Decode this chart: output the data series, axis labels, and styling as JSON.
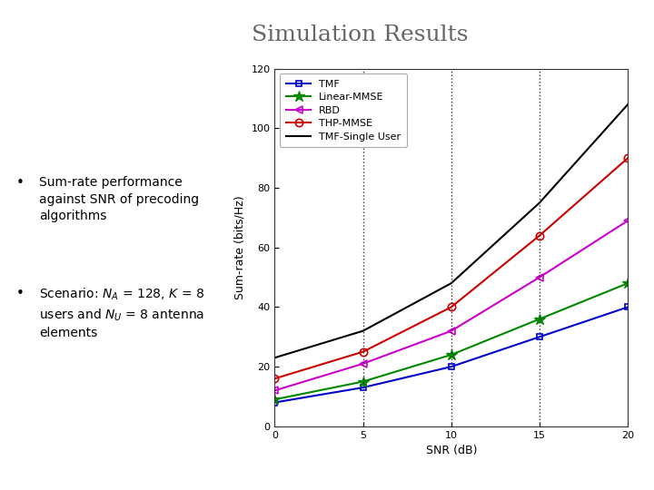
{
  "title": "Simulation Results",
  "title_fontsize": 18,
  "title_color": "#666666",
  "xlabel": "SNR (dB)",
  "ylabel": "Sum-rate (bits/Hz)",
  "xlim": [
    0,
    20
  ],
  "ylim": [
    0,
    120
  ],
  "xticks": [
    0,
    5,
    10,
    15,
    20
  ],
  "yticks": [
    0,
    20,
    40,
    60,
    80,
    100,
    120
  ],
  "snr": [
    0,
    5,
    10,
    15,
    20
  ],
  "TMF": [
    8,
    13,
    20,
    30,
    40
  ],
  "LinearMMSE": [
    9,
    15,
    24,
    36,
    48
  ],
  "RBD": [
    12,
    21,
    32,
    50,
    69
  ],
  "THPMMSE": [
    16,
    25,
    40,
    64,
    90
  ],
  "TMFSingleUser": [
    23,
    32,
    48,
    75,
    108
  ],
  "TMF_color": "#0000cc",
  "LinearMMSE_color": "#008800",
  "RBD_color": "#cc00cc",
  "THPMMSE_color": "#cc0000",
  "TMFSingleUser_color": "#000000",
  "bg_color": "#ffffff",
  "plot_bg": "#ffffff",
  "vline_color": "#333333",
  "vlines": [
    5,
    10,
    15
  ],
  "legend_entries": [
    "TMF",
    "Linear-MMSE",
    "RBD",
    "THP-MMSE",
    "TMF-Single User"
  ],
  "bullet1": "Sum-rate performance\nagainst SNR of precoding\nalgorithms",
  "bullet2": "Scenario: $N_A$ = 128, $K$ = 8\nusers and $N_U$ = 8 antenna\nelements",
  "fontsize_axis": 9,
  "fontsize_legend": 8,
  "fontsize_ticks": 8,
  "fontsize_bullets": 10
}
